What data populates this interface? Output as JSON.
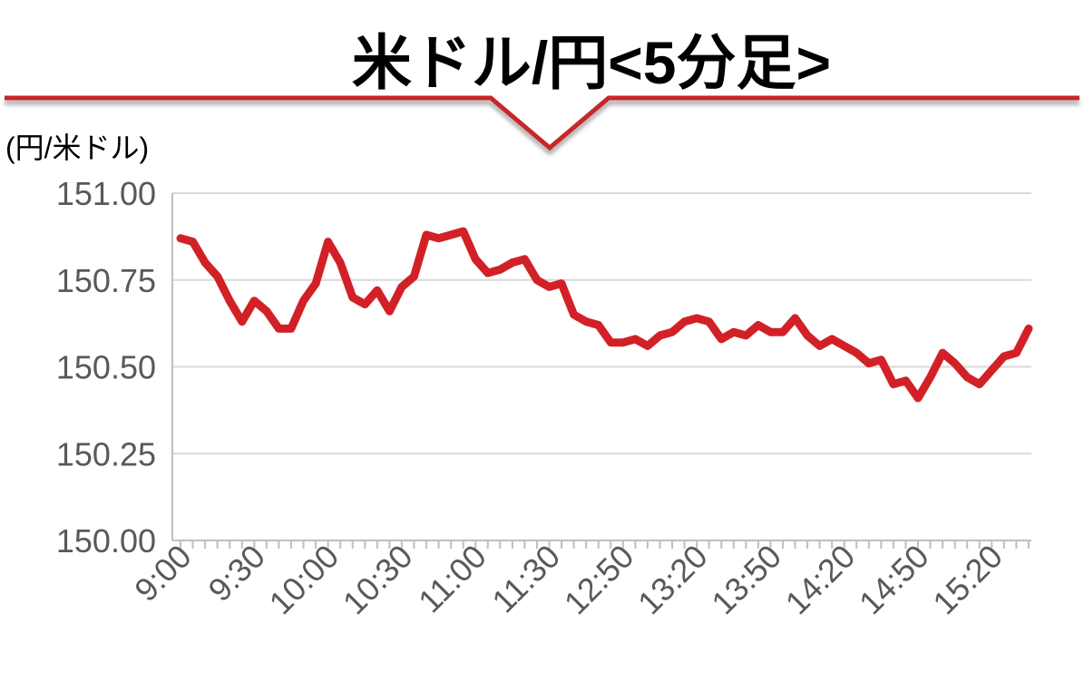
{
  "title": "米ドル/円<5分足>",
  "chart_data": {
    "type": "line",
    "title": "米ドル/円<5分足>",
    "ylabel": "(円/米ドル)",
    "xlabel": "",
    "ylim": [
      150.0,
      151.0
    ],
    "yticks": [
      "151.00",
      "150.75",
      "150.50",
      "150.25",
      "150.00"
    ],
    "ytick_values": [
      151.0,
      150.75,
      150.5,
      150.25,
      150.0
    ],
    "grid": true,
    "xtick_labels": [
      {
        "index": 0,
        "label": "9:00"
      },
      {
        "index": 6,
        "label": "9:30"
      },
      {
        "index": 12,
        "label": "10:00"
      },
      {
        "index": 18,
        "label": "10:30"
      },
      {
        "index": 24,
        "label": "11:00"
      },
      {
        "index": 30,
        "label": "11:30"
      },
      {
        "index": 36,
        "label": "12:50"
      },
      {
        "index": 42,
        "label": "13:20"
      },
      {
        "index": 48,
        "label": "13:50"
      },
      {
        "index": 54,
        "label": "14:20"
      },
      {
        "index": 60,
        "label": "14:50"
      },
      {
        "index": 66,
        "label": "15:20"
      }
    ],
    "series": [
      {
        "color": "#d22126",
        "values": [
          150.87,
          150.86,
          150.8,
          150.76,
          150.69,
          150.63,
          150.69,
          150.66,
          150.61,
          150.61,
          150.69,
          150.74,
          150.86,
          150.8,
          150.7,
          150.68,
          150.72,
          150.66,
          150.73,
          150.76,
          150.88,
          150.87,
          150.88,
          150.89,
          150.81,
          150.77,
          150.78,
          150.8,
          150.81,
          150.75,
          150.73,
          150.74,
          150.65,
          150.63,
          150.62,
          150.57,
          150.57,
          150.58,
          150.56,
          150.59,
          150.6,
          150.63,
          150.64,
          150.63,
          150.58,
          150.6,
          150.59,
          150.62,
          150.6,
          150.6,
          150.64,
          150.59,
          150.56,
          150.58,
          150.56,
          150.54,
          150.51,
          150.52,
          150.45,
          150.46,
          150.41,
          150.47,
          150.54,
          150.51,
          150.47,
          150.45,
          150.49,
          150.53,
          150.54,
          150.61
        ]
      }
    ]
  }
}
